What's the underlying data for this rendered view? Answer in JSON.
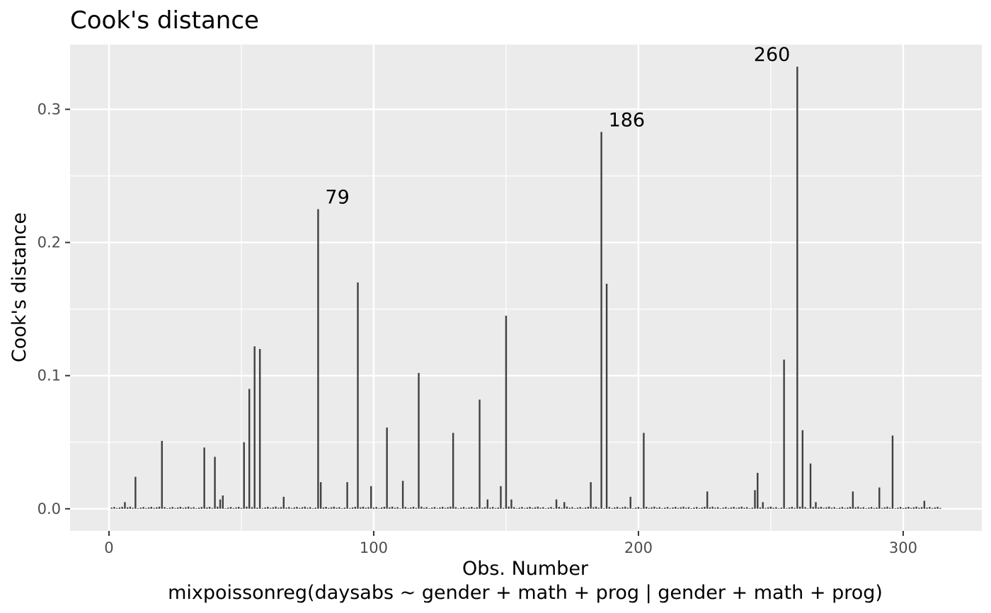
{
  "chart_data": {
    "type": "bar",
    "title": "Cook's distance",
    "xlabel": "Obs. Number",
    "subtitle": "mixpoissonreg(daysabs ~ gender + math + prog | gender + math + prog)",
    "ylabel": "Cook's distance",
    "xlim": [
      -14.7,
      329.7
    ],
    "ylim": [
      -0.0166,
      0.3486
    ],
    "x_ticks": [
      0,
      100,
      200,
      300
    ],
    "x_tick_labels": [
      "0",
      "100",
      "200",
      "300"
    ],
    "y_ticks": [
      0.0,
      0.1,
      0.2,
      0.3
    ],
    "y_tick_labels": [
      "0.0",
      "0.1",
      "0.2",
      "0.3"
    ],
    "grid": true,
    "colors": {
      "panel": "#ebebeb",
      "grid": "#ffffff",
      "bar": "#404040"
    },
    "n_obs": 314,
    "x": [
      6,
      10,
      20,
      36,
      40,
      42,
      43,
      51,
      53,
      55,
      57,
      66,
      79,
      80,
      90,
      94,
      99,
      105,
      111,
      117,
      130,
      140,
      143,
      148,
      150,
      152,
      169,
      172,
      182,
      186,
      188,
      197,
      202,
      226,
      244,
      245,
      247,
      255,
      260,
      262,
      265,
      267,
      281,
      291,
      296,
      308
    ],
    "values": [
      0.005,
      0.024,
      0.051,
      0.046,
      0.039,
      0.007,
      0.01,
      0.05,
      0.09,
      0.122,
      0.12,
      0.009,
      0.225,
      0.02,
      0.02,
      0.17,
      0.017,
      0.061,
      0.021,
      0.102,
      0.057,
      0.082,
      0.007,
      0.017,
      0.145,
      0.007,
      0.007,
      0.005,
      0.02,
      0.283,
      0.169,
      0.009,
      0.057,
      0.013,
      0.014,
      0.027,
      0.005,
      0.112,
      0.332,
      0.059,
      0.034,
      0.005,
      0.013,
      0.016,
      0.055,
      0.006
    ],
    "annotations": [
      {
        "label": "79",
        "x": 79,
        "y": 0.225,
        "side": "right"
      },
      {
        "label": "186",
        "x": 186,
        "y": 0.283,
        "side": "right"
      },
      {
        "label": "260",
        "x": 260,
        "y": 0.332,
        "side": "left"
      }
    ]
  }
}
